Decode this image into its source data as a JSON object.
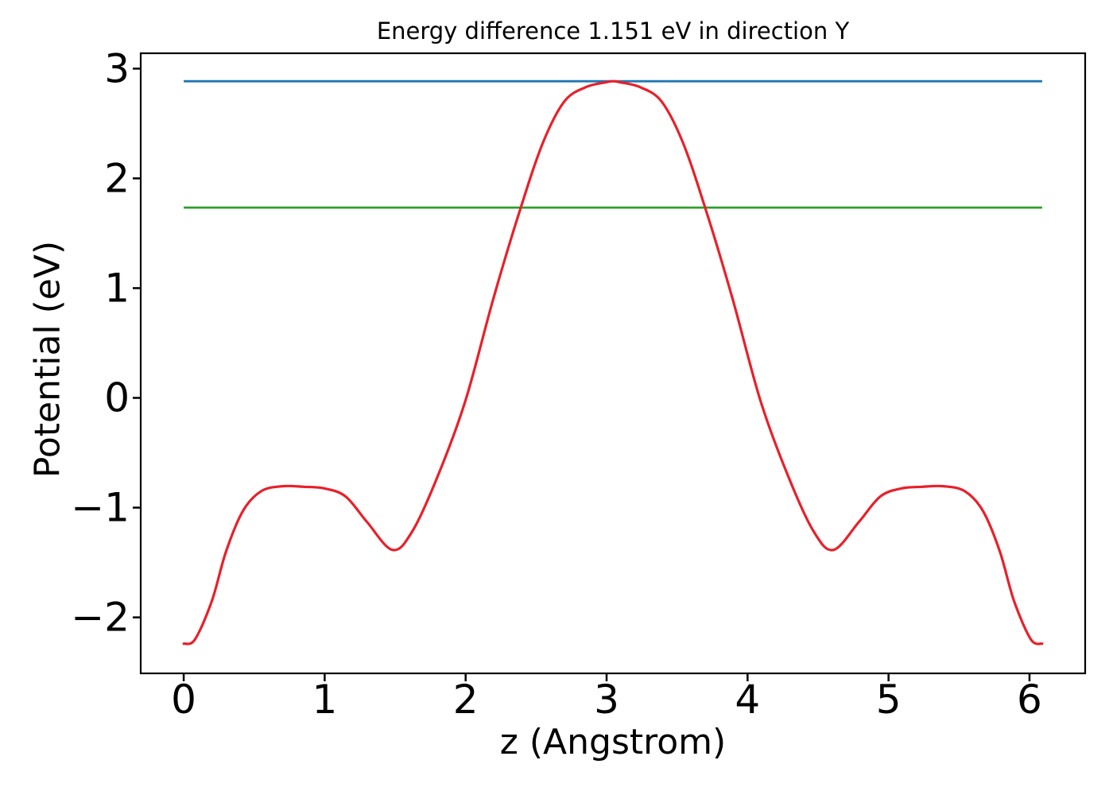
{
  "figure": {
    "background": "#ffffff",
    "axis_color": "#000000"
  },
  "chart_data": {
    "type": "line",
    "title": "Energy difference 1.151 eV in direction Y",
    "xlabel": "z (Angstrom)",
    "ylabel": "Potential (eV)",
    "energy_difference_eV": 1.151,
    "direction": "Y",
    "grid": false,
    "legend_position": "none",
    "xlim": [
      -0.305,
      6.395
    ],
    "ylim": [
      -2.51,
      3.14
    ],
    "xticks": [
      0,
      1,
      2,
      3,
      4,
      5,
      6
    ],
    "xticklabels": [
      "0",
      "1",
      "2",
      "3",
      "4",
      "5",
      "6"
    ],
    "yticks": [
      -2,
      -1,
      0,
      1,
      2,
      3
    ],
    "yticklabels": [
      "−2",
      "−1",
      "0",
      "1",
      "2",
      "3"
    ],
    "hlines": [
      {
        "name": "maximum-potential-level",
        "value": 2.885,
        "x_start": 0,
        "x_end": 6.09,
        "color": "#1f77b4"
      },
      {
        "name": "reference-energy-level",
        "value": 1.734,
        "x_start": 0,
        "x_end": 6.09,
        "color": "#2ca02c"
      }
    ],
    "series": [
      {
        "name": "planar-averaged-potential",
        "color": "#e8202a",
        "x": [
          0,
          0.08,
          0.2,
          0.3,
          0.42,
          0.55,
          0.7,
          0.85,
          1.0,
          1.15,
          1.3,
          1.48,
          1.62,
          1.8,
          2.0,
          2.2,
          2.39,
          2.55,
          2.7,
          2.85,
          3.0,
          3.045,
          3.09,
          3.24,
          3.39,
          3.54,
          3.7,
          3.89,
          4.09,
          4.29,
          4.47,
          4.61,
          4.79,
          4.94,
          5.09,
          5.24,
          5.39,
          5.54,
          5.67,
          5.79,
          5.89,
          6.01,
          6.09
        ],
        "y": [
          -2.24,
          -2.2,
          -1.85,
          -1.4,
          -1.03,
          -0.85,
          -0.805,
          -0.81,
          -0.825,
          -0.9,
          -1.13,
          -1.385,
          -1.22,
          -0.72,
          -0.02,
          0.92,
          1.73,
          2.33,
          2.7,
          2.83,
          2.877,
          2.885,
          2.877,
          2.83,
          2.7,
          2.33,
          1.73,
          0.92,
          -0.02,
          -0.72,
          -1.22,
          -1.385,
          -1.13,
          -0.9,
          -0.825,
          -0.81,
          -0.805,
          -0.85,
          -1.03,
          -1.4,
          -1.85,
          -2.2,
          -2.24
        ]
      }
    ]
  }
}
